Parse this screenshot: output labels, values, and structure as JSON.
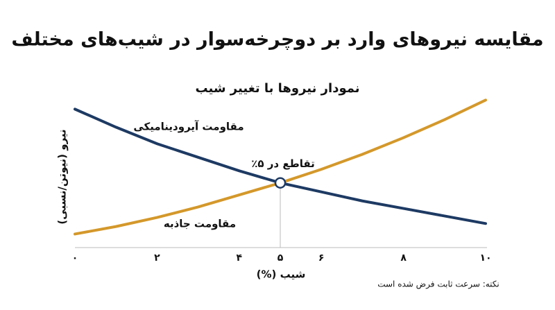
{
  "chart_data": {
    "type": "line",
    "title": "مقایسه نیروهای وارد بر دوچرخه‌سوار در شیب‌های مختلف",
    "subtitle": "نمودار نیروها با تغییر شیب",
    "xlabel": "شیب (%)",
    "ylabel": "نیرو (نیوتن/نسبی)",
    "note": "نکته: سرعت ثابت فرض شده است",
    "x": [
      0,
      1,
      2,
      3,
      4,
      5,
      6,
      7,
      8,
      9,
      10
    ],
    "series": [
      {
        "name": "مقاومت آیرودینامیکی",
        "color": "#1d3a63",
        "values": [
          92,
          80,
          69,
          60,
          51,
          43,
          37,
          31,
          26,
          21,
          16
        ]
      },
      {
        "name": "مقاومت جاذبه",
        "color": "#d4982a",
        "values": [
          9,
          14,
          20,
          27,
          35,
          43,
          52,
          62,
          73,
          85,
          98
        ]
      }
    ],
    "intersection": {
      "x": 5,
      "y": 43,
      "label": "تقاطع در ۵٪"
    },
    "xlim": [
      0,
      10
    ],
    "ylim": [
      0,
      100
    ],
    "xticks": [
      {
        "value": 0,
        "label": "۰"
      },
      {
        "value": 2,
        "label": "۲"
      },
      {
        "value": 4,
        "label": "۴"
      },
      {
        "value": 5,
        "label": "۵"
      },
      {
        "value": 6,
        "label": "۶"
      },
      {
        "value": 8,
        "label": "۸"
      },
      {
        "value": 10,
        "label": "۱۰"
      }
    ]
  }
}
